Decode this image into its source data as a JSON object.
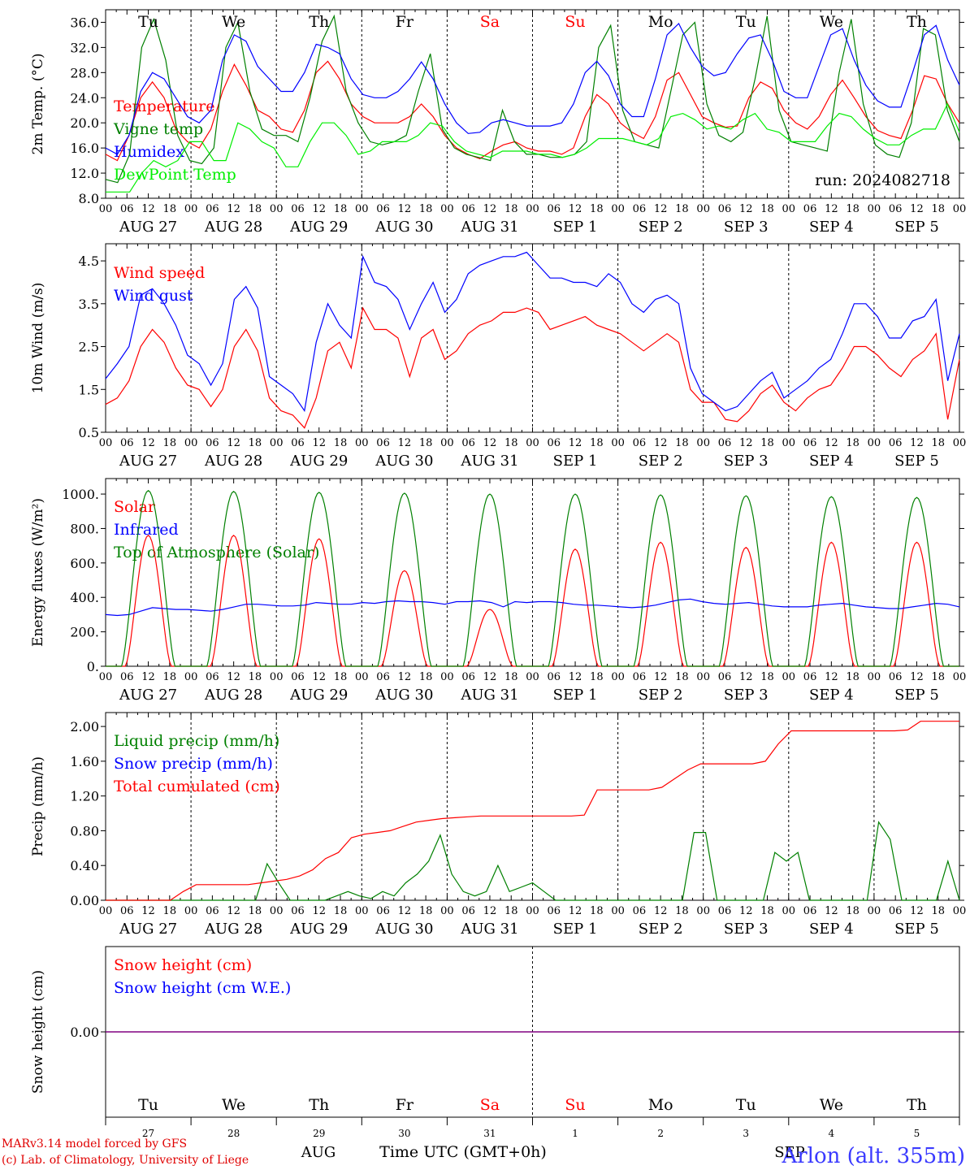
{
  "days": {
    "abbr": [
      "Tu",
      "We",
      "Th",
      "Fr",
      "Sa",
      "Su",
      "Mo",
      "Tu",
      "We",
      "Th"
    ],
    "weekend": [
      false,
      false,
      false,
      false,
      true,
      true,
      false,
      false,
      false,
      false
    ],
    "dates": [
      "AUG 27",
      "AUG 28",
      "AUG 29",
      "AUG 30",
      "AUG 31",
      "SEP  1",
      "SEP  2",
      "SEP  3",
      "SEP  4",
      "SEP  5"
    ],
    "hours": [
      "00",
      "06",
      "12",
      "18"
    ],
    "final_hour": "00",
    "bottom_daynums": [
      "27",
      "28",
      "29",
      "30",
      "31",
      "1",
      "2",
      "3",
      "4",
      "5"
    ],
    "bottom_months": [
      "AUG",
      "SEP"
    ]
  },
  "colors": {
    "red": "#ff0000",
    "green": "#008000",
    "blue": "#0000ff",
    "lightgreen": "#00ee00",
    "purple": "#800080",
    "weekend": "#ff0000"
  },
  "run_label": "run: 2024082718",
  "xlabel": "Time UTC (GMT+0h)",
  "footer": {
    "line1": "MARv3.14 model forced by GFS",
    "line2": "(c) Lab. of Climatology, University of Liege",
    "station": "Arlon (alt. 355m)"
  },
  "chart_data": [
    {
      "type": "line",
      "ylabel": "2m Temp. (°C)",
      "ylim": [
        8,
        38
      ],
      "yticks": [
        "8.0",
        "12.0",
        "16.0",
        "20.0",
        "24.0",
        "28.0",
        "32.0",
        "36.0"
      ],
      "ytick_values": [
        8,
        12,
        16,
        20,
        24,
        28,
        32,
        36
      ],
      "x_hours": [
        0,
        3,
        6,
        9,
        12,
        15,
        18,
        21,
        24,
        27,
        30,
        33,
        36,
        39,
        42,
        45,
        48,
        51,
        54,
        57,
        60,
        63,
        66,
        69,
        72,
        75,
        78,
        81,
        84,
        87,
        90,
        93,
        96,
        99,
        102,
        105,
        108,
        111,
        114,
        117,
        120,
        123,
        126,
        129,
        132,
        135,
        138,
        141,
        144,
        147,
        150,
        153,
        156,
        159,
        162,
        165,
        168,
        171,
        174,
        177,
        180,
        183,
        186,
        189,
        192,
        195,
        198,
        201,
        204,
        207,
        210,
        213,
        216,
        219,
        222,
        225,
        228,
        231,
        234,
        237,
        240
      ],
      "series": [
        {
          "name": "Temperature",
          "color": "#ff0000",
          "values": [
            15,
            14,
            18,
            24,
            26.5,
            24,
            19,
            17,
            16,
            19,
            25,
            29.3,
            26,
            22,
            21,
            19,
            18.5,
            22,
            28,
            29.8,
            27,
            23,
            21,
            20,
            20,
            20,
            21,
            23,
            21,
            18,
            16,
            15,
            14.3,
            15.5,
            16.5,
            17,
            16,
            15.5,
            15.5,
            15,
            16,
            21,
            24.5,
            23,
            20,
            18.5,
            17.5,
            21,
            26.8,
            28,
            24.5,
            21,
            20,
            19.3,
            19.5,
            24,
            26.5,
            25.5,
            22,
            20,
            19,
            21,
            24.5,
            26.8,
            24,
            21,
            18.8,
            18,
            17.5,
            22,
            27.5,
            27,
            23,
            20
          ]
        },
        {
          "name": "Vigne temp",
          "color": "#008000",
          "values": [
            11,
            10.5,
            15,
            32,
            36.5,
            30,
            18,
            14,
            13.5,
            16,
            32,
            36,
            25,
            19,
            18,
            18,
            17,
            24,
            33,
            37,
            25,
            20,
            17,
            16.5,
            17,
            18,
            25,
            31,
            19,
            16,
            15,
            14.5,
            14,
            22,
            17,
            15,
            15,
            14.5,
            14.5,
            15,
            17,
            32,
            35.5,
            22,
            17,
            16.5,
            16,
            25,
            34,
            36,
            23,
            18,
            17,
            18.5,
            27,
            37,
            22,
            17,
            16.5,
            16,
            15.5,
            28,
            36.5,
            23,
            16.5,
            15,
            14.5,
            20,
            35,
            34,
            22,
            17
          ]
        },
        {
          "name": "Humidex",
          "color": "#0000ff",
          "values": [
            16,
            15,
            18,
            25,
            28,
            27,
            24,
            21,
            20,
            22,
            30,
            34,
            33,
            29,
            27,
            25,
            25,
            28,
            32.5,
            32,
            31,
            27,
            24.5,
            24,
            24,
            25,
            27,
            29.7,
            27,
            23,
            20,
            18.3,
            18.5,
            20,
            20.5,
            20,
            19.5,
            19.5,
            19.5,
            20,
            23,
            28,
            29.8,
            27.5,
            23,
            21,
            21,
            27,
            34,
            35.8,
            32,
            29,
            27.5,
            28,
            31,
            33.5,
            34,
            30,
            25,
            24,
            24,
            29,
            34,
            35,
            30,
            26,
            23.5,
            22.5,
            22.5,
            28,
            34,
            35.5,
            30,
            26
          ]
        },
        {
          "name": "DewPoint Temp",
          "color": "#00ee00",
          "values": [
            9,
            9,
            9,
            12,
            14,
            13,
            14,
            17,
            17,
            14,
            14,
            20,
            19,
            17,
            16,
            13,
            13,
            17,
            20,
            20,
            18,
            15,
            15.5,
            17,
            17,
            17,
            18,
            20,
            19.5,
            17,
            15.5,
            15,
            14.5,
            15.5,
            15.5,
            15.5,
            15,
            15,
            14.5,
            15,
            16,
            17.5,
            17.5,
            17.5,
            17,
            16.5,
            17.5,
            21,
            21.5,
            20.5,
            19,
            19.5,
            19,
            20.5,
            21.5,
            19,
            18.5,
            17,
            17,
            17,
            19.5,
            21.5,
            21,
            19,
            17.5,
            16.5,
            16.5,
            18,
            19,
            19,
            23,
            18.5
          ]
        }
      ]
    },
    {
      "type": "line",
      "ylabel": "10m Wind (m/s)",
      "ylim": [
        0.5,
        4.9
      ],
      "yticks": [
        "0.5",
        "1.5",
        "2.5",
        "3.5",
        "4.5"
      ],
      "ytick_values": [
        0.5,
        1.5,
        2.5,
        3.5,
        4.5
      ],
      "series": [
        {
          "name": "Wind speed",
          "color": "#ff0000",
          "values": [
            1.15,
            1.3,
            1.7,
            2.5,
            2.9,
            2.6,
            2.0,
            1.6,
            1.5,
            1.1,
            1.5,
            2.5,
            2.9,
            2.4,
            1.3,
            1.0,
            0.9,
            0.6,
            1.3,
            2.4,
            2.6,
            2.0,
            3.4,
            2.9,
            2.9,
            2.7,
            1.8,
            2.7,
            2.9,
            2.2,
            2.4,
            2.8,
            3.0,
            3.1,
            3.3,
            3.3,
            3.4,
            3.3,
            2.9,
            3.0,
            3.1,
            3.2,
            3.0,
            2.9,
            2.8,
            2.6,
            2.4,
            2.6,
            2.8,
            2.6,
            1.5,
            1.2,
            1.2,
            0.8,
            0.75,
            1.0,
            1.4,
            1.6,
            1.2,
            1.0,
            1.3,
            1.5,
            1.6,
            2.0,
            2.5,
            2.5,
            2.3,
            2.0,
            1.8,
            2.2,
            2.4,
            2.8,
            0.8,
            2.2
          ]
        },
        {
          "name": "Wind gust",
          "color": "#0000ff",
          "values": [
            1.75,
            2.1,
            2.5,
            3.7,
            3.85,
            3.5,
            3.0,
            2.3,
            2.1,
            1.6,
            2.1,
            3.6,
            3.9,
            3.4,
            1.8,
            1.6,
            1.4,
            1.0,
            2.6,
            3.5,
            3.0,
            2.7,
            4.6,
            4.0,
            3.9,
            3.6,
            2.9,
            3.5,
            4.0,
            3.3,
            3.6,
            4.2,
            4.4,
            4.5,
            4.6,
            4.6,
            4.7,
            4.4,
            4.1,
            4.1,
            4.0,
            4.0,
            3.9,
            4.2,
            4.0,
            3.5,
            3.3,
            3.6,
            3.7,
            3.5,
            2.0,
            1.4,
            1.2,
            1.0,
            1.1,
            1.4,
            1.7,
            1.9,
            1.3,
            1.5,
            1.7,
            2.0,
            2.2,
            2.8,
            3.5,
            3.5,
            3.2,
            2.7,
            2.7,
            3.1,
            3.2,
            3.6,
            1.7,
            2.8
          ]
        }
      ]
    },
    {
      "type": "line",
      "ylabel": "Energy fluxes (W/m²)",
      "ylim": [
        0,
        1090
      ],
      "yticks": [
        "0.",
        "200.",
        "400.",
        "600.",
        "800.",
        "1000."
      ],
      "ytick_values": [
        0,
        200,
        400,
        600,
        800,
        1000
      ],
      "series": [
        {
          "name": "Solar",
          "color": "#ff0000",
          "peak_values": [
            760,
            760,
            740,
            555,
            330,
            680,
            720,
            690,
            720,
            720
          ]
        },
        {
          "name": "Infrared",
          "color": "#0000ff",
          "values": [
            300,
            295,
            300,
            320,
            340,
            335,
            330,
            330,
            325,
            320,
            330,
            345,
            360,
            360,
            355,
            350,
            350,
            355,
            370,
            365,
            360,
            360,
            370,
            365,
            375,
            380,
            375,
            375,
            370,
            360,
            375,
            375,
            380,
            370,
            345,
            375,
            370,
            375,
            375,
            370,
            360,
            355,
            355,
            350,
            345,
            340,
            345,
            355,
            370,
            385,
            390,
            375,
            365,
            360,
            365,
            370,
            360,
            350,
            345,
            345,
            345,
            355,
            360,
            365,
            355,
            345,
            340,
            335,
            335,
            345,
            355,
            365,
            360,
            345
          ]
        },
        {
          "name": "Top of Atmosphere (Solar)",
          "color": "#008000",
          "peak_values": [
            1020,
            1015,
            1010,
            1005,
            1000,
            1000,
            995,
            990,
            985,
            980
          ]
        }
      ]
    },
    {
      "type": "line",
      "ylabel": "Precip (mm/h)",
      "ylim": [
        0,
        2.16
      ],
      "yticks": [
        "0.00",
        "0.40",
        "0.80",
        "1.20",
        "1.60",
        "2.00"
      ],
      "ytick_values": [
        0,
        0.4,
        0.8,
        1.2,
        1.6,
        2.0
      ],
      "series": [
        {
          "name": "Liquid precip (mm/h)",
          "color": "#008000",
          "values": [
            0,
            0,
            0,
            0,
            0,
            0,
            0,
            0,
            0,
            0,
            0,
            0,
            0,
            0,
            0.42,
            0.2,
            0,
            0,
            0,
            0,
            0.05,
            0.1,
            0.05,
            0.02,
            0.1,
            0.05,
            0.2,
            0.3,
            0.45,
            0.75,
            0.3,
            0.1,
            0.05,
            0.1,
            0.4,
            0.1,
            0.15,
            0.2,
            0.1,
            0,
            0,
            0,
            0,
            0,
            0,
            0,
            0,
            0,
            0,
            0,
            0,
            0.78,
            0.78,
            0,
            0,
            0,
            0,
            0,
            0.55,
            0.45,
            0.55,
            0,
            0,
            0,
            0,
            0,
            0,
            0.9,
            0.7,
            0,
            0,
            0,
            0,
            0.45,
            0
          ]
        },
        {
          "name": "Snow precip (mm/h)",
          "color": "#0000ff",
          "values": []
        },
        {
          "name": "Total cumulated (cm)",
          "color": "#ff0000",
          "values": [
            0,
            0,
            0,
            0,
            0,
            0,
            0.1,
            0.18,
            0.18,
            0.18,
            0.18,
            0.18,
            0.2,
            0.22,
            0.24,
            0.28,
            0.35,
            0.48,
            0.55,
            0.72,
            0.76,
            0.78,
            0.8,
            0.85,
            0.9,
            0.92,
            0.94,
            0.95,
            0.96,
            0.97,
            0.97,
            0.97,
            0.97,
            0.97,
            0.97,
            0.97,
            0.97,
            0.98,
            1.27,
            1.27,
            1.27,
            1.27,
            1.27,
            1.3,
            1.4,
            1.5,
            1.57,
            1.57,
            1.57,
            1.57,
            1.57,
            1.6,
            1.8,
            1.95,
            1.95,
            1.95,
            1.95,
            1.95,
            1.95,
            1.95,
            1.95,
            1.95,
            1.96,
            2.06,
            2.06,
            2.06,
            2.06
          ]
        }
      ]
    },
    {
      "type": "line",
      "ylabel": "Snow height (cm)",
      "yticks": [
        "0.00"
      ],
      "ytick_values": [
        0
      ],
      "ylim": [
        -1,
        1
      ],
      "series": [
        {
          "name": "Snow height (cm)",
          "color": "#ff0000",
          "values": [
            0
          ]
        },
        {
          "name": "Snow height (cm W.E.)",
          "color": "#0000ff",
          "values": [
            0
          ]
        }
      ]
    }
  ]
}
